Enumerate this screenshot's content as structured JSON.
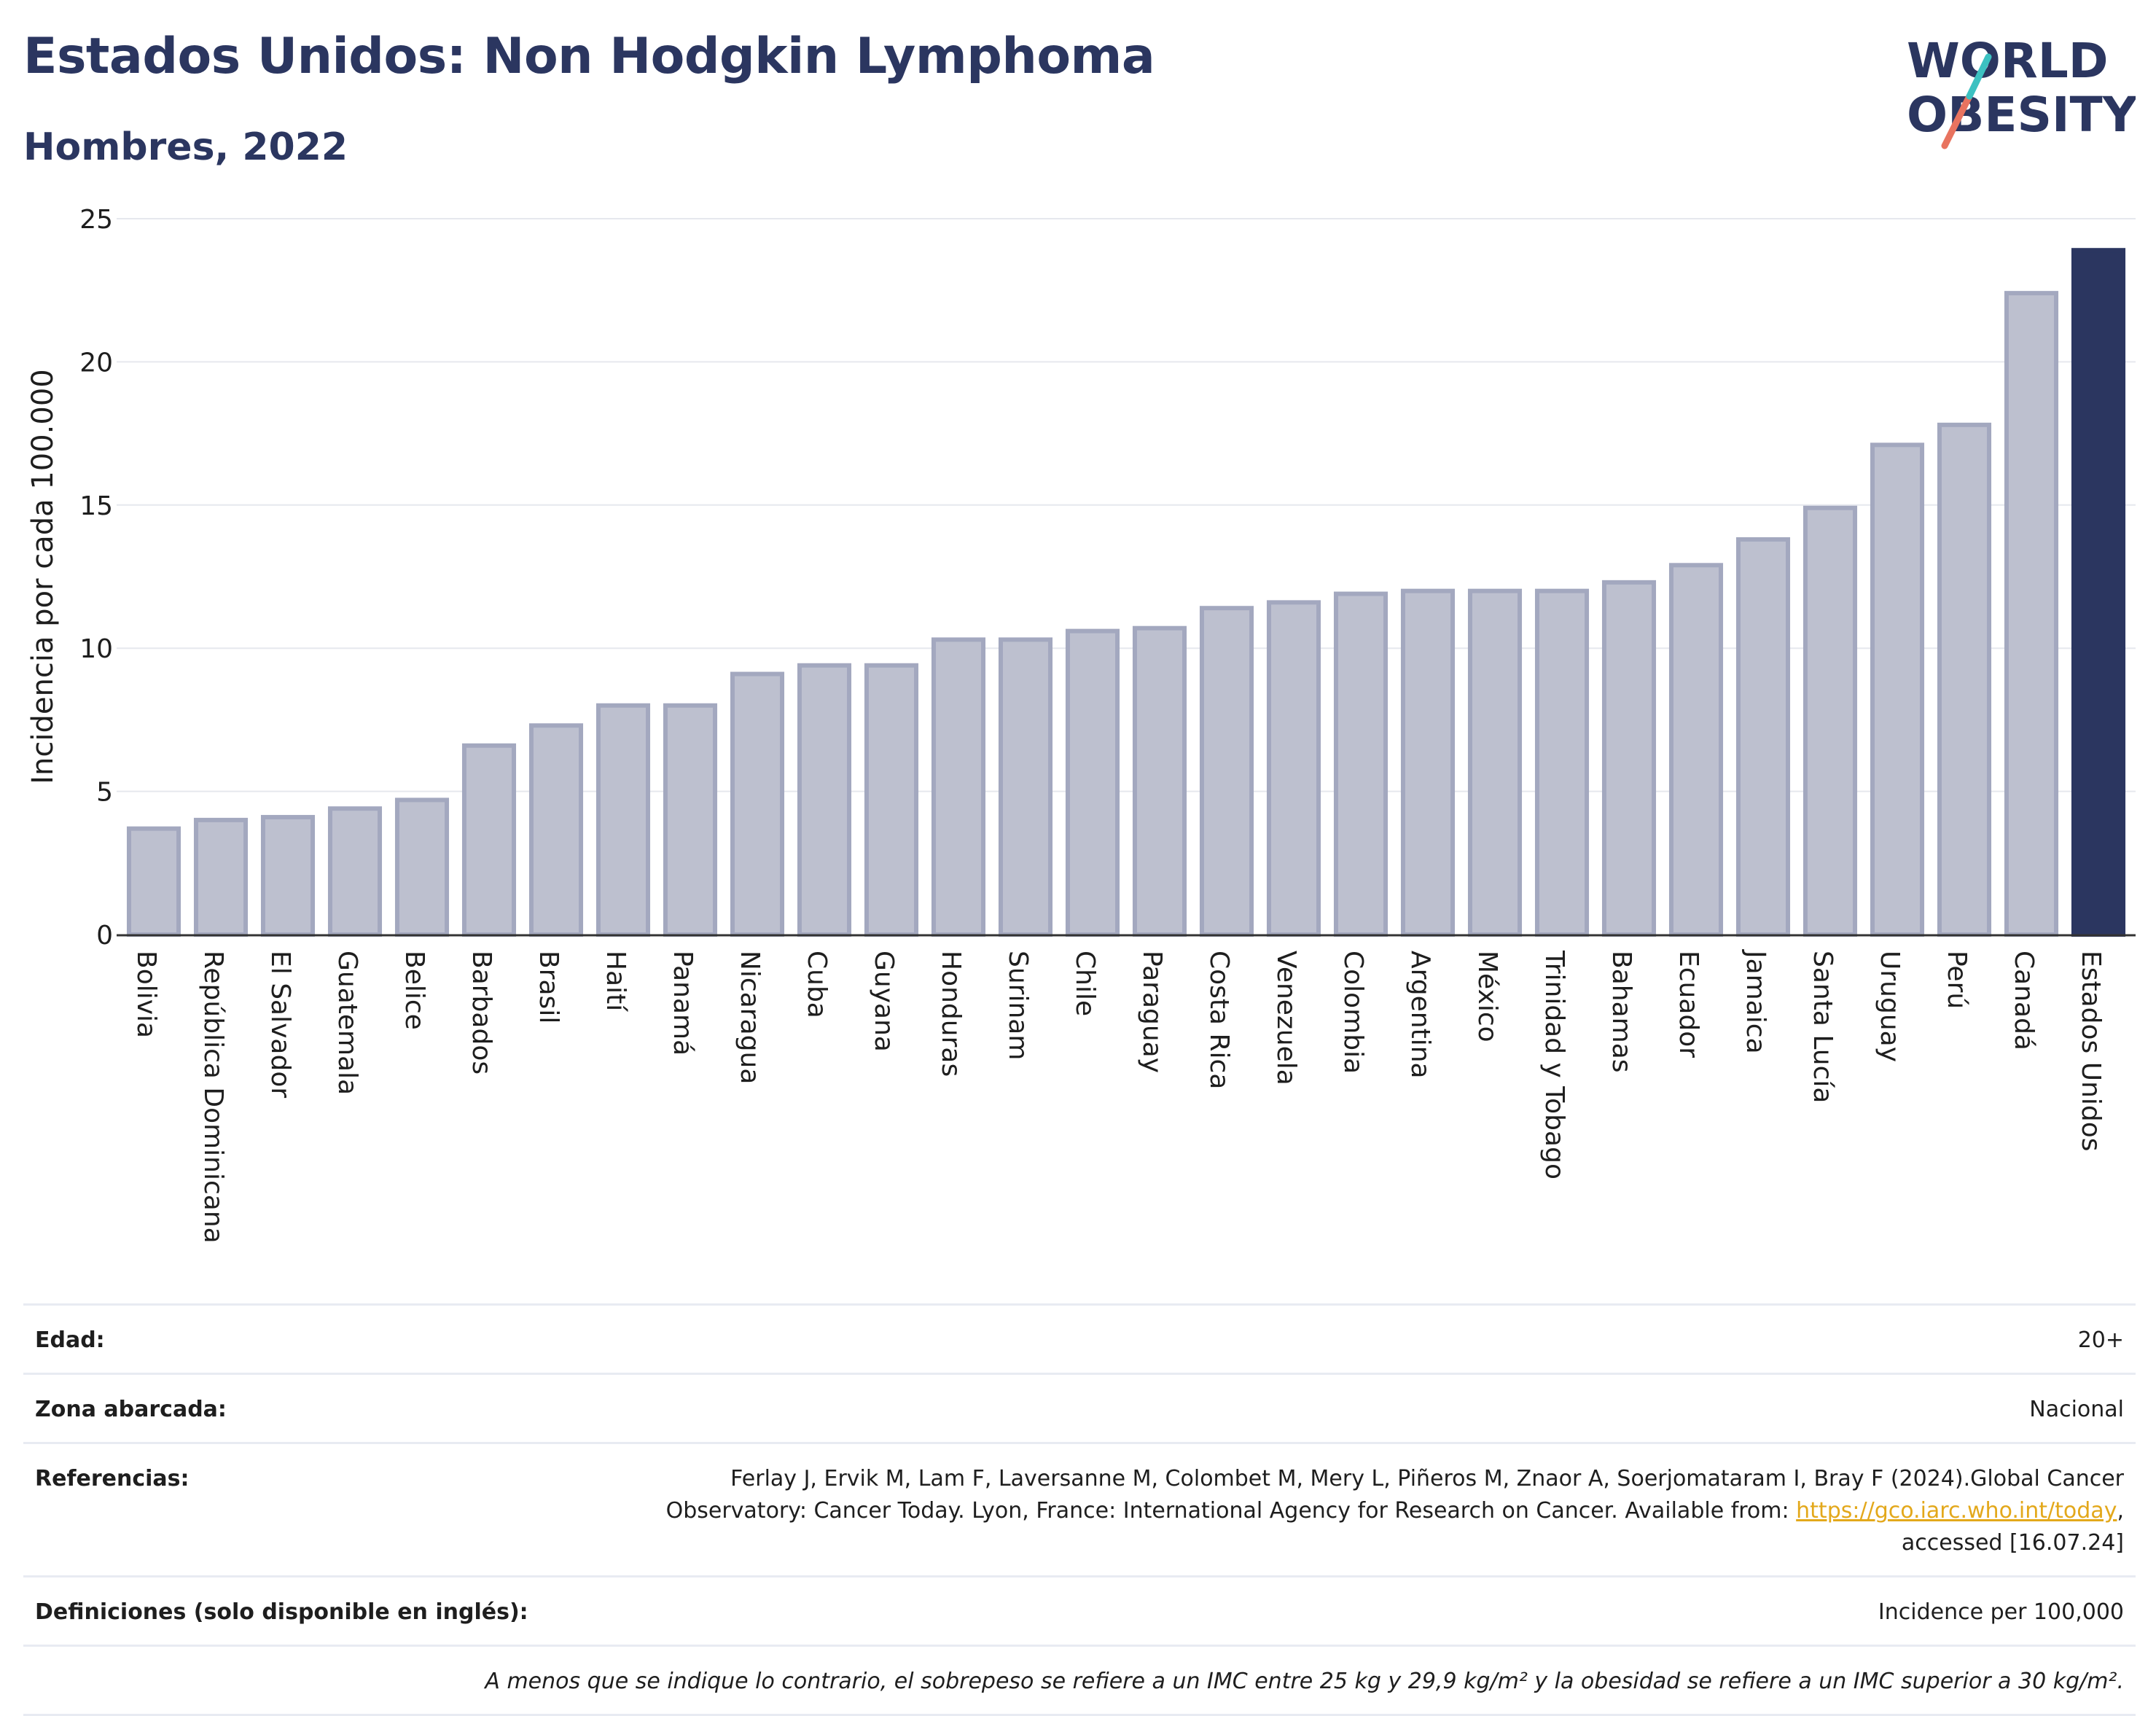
{
  "header": {
    "title": "Estados Unidos: Non Hodgkin Lymphoma",
    "subtitle": "Hombres, 2022"
  },
  "logo": {
    "line1": "WORLD",
    "line2": "OBESITY"
  },
  "colors": {
    "bar": "#bdc0cf",
    "bar_border": "#a3a8bf",
    "highlight": "#2b3660",
    "title": "#2b3660",
    "link": "#e3a81b"
  },
  "chart_data": {
    "type": "bar",
    "ylabel": "Incidencia por cada 100.000",
    "ylim": [
      0,
      25
    ],
    "yticks": [
      0,
      5,
      10,
      15,
      20,
      25
    ],
    "grid": true,
    "highlight": "Estados Unidos",
    "categories": [
      "Bolivia",
      "República Dominicana",
      "El Salvador",
      "Guatemala",
      "Belice",
      "Barbados",
      "Brasil",
      "Haití",
      "Panamá",
      "Nicaragua",
      "Cuba",
      "Guyana",
      "Honduras",
      "Surinam",
      "Chile",
      "Paraguay",
      "Costa Rica",
      "Venezuela",
      "Colombia",
      "Argentina",
      "México",
      "Trinidad y Tobago",
      "Bahamas",
      "Ecuador",
      "Jamaica",
      "Santa Lucía",
      "Uruguay",
      "Perú",
      "Canadá",
      "Estados Unidos"
    ],
    "values": [
      3.7,
      4.0,
      4.1,
      4.4,
      4.7,
      6.6,
      7.3,
      8.0,
      8.0,
      9.1,
      9.4,
      9.4,
      10.3,
      10.3,
      10.6,
      10.7,
      11.4,
      11.6,
      11.9,
      12.0,
      12.0,
      12.0,
      12.3,
      12.9,
      13.8,
      14.9,
      17.1,
      17.8,
      22.4,
      23.9
    ]
  },
  "info": {
    "age_label": "Edad:",
    "age_value": "20+",
    "zone_label": "Zona abarcada:",
    "zone_value": "Nacional",
    "refs_label": "Referencias:",
    "refs_text_1": "Ferlay J, Ervik M, Lam F, Laversanne M, Colombet M, Mery L, Piñeros M, Znaor A, Soerjomataram I, Bray F (2024).Global Cancer",
    "refs_text_2": "Observatory: Cancer Today. Lyon, France: International Agency for Research on Cancer. Available from: ",
    "refs_link": "https://gco.iarc.who.int/today",
    "refs_text_3": ",",
    "refs_text_4": "accessed [16.07.24]",
    "def_label": "Definiciones (solo disponible en inglés):",
    "def_value": "Incidence per 100,000",
    "note": "A menos que se indique lo contrario, el sobrepeso se refiere a un IMC entre 25 kg y 29,9 kg/m² y la obesidad se refiere a un IMC superior a 30 kg/m²."
  }
}
